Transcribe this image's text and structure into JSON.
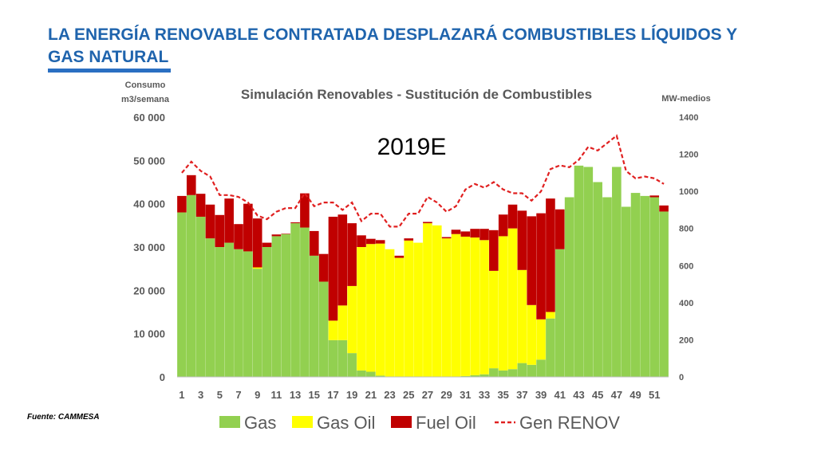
{
  "slide": {
    "title": "LA ENERGÍA RENOVABLE CONTRATADA DESPLAZARÁ COMBUSTIBLES LÍQUIDOS Y GAS NATURAL",
    "source": "Fuente: CAMMESA",
    "accent_color": "#1f64ad"
  },
  "chart_data": {
    "type": "bar",
    "stacked": true,
    "title": "Simulación Renovables - Sustitución de Combustibles",
    "annotation": "2019E",
    "ylabel_left_line1": "Consumo",
    "ylabel_left_line2": "m3/semana",
    "ylabel_right": "MW-medios",
    "ylim_left": [
      0,
      60000
    ],
    "ylim_right": [
      0,
      1400
    ],
    "yticks_left": [
      "0",
      "10 000",
      "20 000",
      "30 000",
      "40 000",
      "50 000",
      "60 000"
    ],
    "yticks_right": [
      "0",
      "200",
      "400",
      "600",
      "800",
      "1000",
      "1200",
      "1400"
    ],
    "categories": [
      1,
      2,
      3,
      4,
      5,
      6,
      7,
      8,
      9,
      10,
      11,
      12,
      13,
      14,
      15,
      16,
      17,
      18,
      19,
      20,
      21,
      22,
      23,
      24,
      25,
      26,
      27,
      28,
      29,
      30,
      31,
      32,
      33,
      34,
      35,
      36,
      37,
      38,
      39,
      40,
      41,
      42,
      43,
      44,
      45,
      46,
      47,
      48,
      49,
      50,
      51,
      52
    ],
    "xtick_labels": [
      "1",
      "3",
      "5",
      "7",
      "9",
      "11",
      "13",
      "15",
      "17",
      "19",
      "21",
      "23",
      "25",
      "27",
      "29",
      "31",
      "33",
      "35",
      "37",
      "39",
      "41",
      "43",
      "45",
      "47",
      "49",
      "51"
    ],
    "series": [
      {
        "name": "Gas",
        "kind": "bar",
        "color": "#92d050",
        "values": [
          38000,
          42000,
          37000,
          32000,
          30000,
          31000,
          29500,
          29000,
          25000,
          30000,
          32500,
          33000,
          35500,
          34500,
          28000,
          22000,
          8500,
          8500,
          5500,
          1500,
          1200,
          300,
          0,
          0,
          0,
          0,
          0,
          0,
          0,
          0,
          200,
          400,
          600,
          2000,
          1500,
          1800,
          3200,
          2800,
          4000,
          13500,
          29500,
          41500,
          48800,
          48500,
          45000,
          41500,
          48500,
          39300,
          42500,
          41800,
          41500,
          38200
        ]
      },
      {
        "name": "Gas Oil",
        "kind": "bar",
        "color": "#ffff00",
        "values": [
          0,
          0,
          0,
          0,
          0,
          0,
          0,
          0,
          300,
          0,
          0,
          0,
          0,
          0,
          0,
          0,
          4500,
          8000,
          15500,
          28500,
          29500,
          30500,
          29500,
          27500,
          31500,
          31000,
          35500,
          35000,
          32000,
          33000,
          32200,
          31800,
          31000,
          22500,
          31000,
          32500,
          21500,
          13800,
          9300,
          1500,
          0,
          0,
          0,
          0,
          0,
          0,
          0,
          0,
          0,
          0,
          0,
          0
        ]
      },
      {
        "name": "Fuel Oil",
        "kind": "bar",
        "color": "#c00000",
        "values": [
          3800,
          4600,
          5300,
          7800,
          7400,
          10200,
          5800,
          11000,
          11300,
          1000,
          400,
          100,
          200,
          7900,
          5700,
          6400,
          24000,
          21000,
          14500,
          2700,
          1200,
          800,
          0,
          500,
          500,
          0,
          300,
          0,
          300,
          1000,
          1200,
          2000,
          2600,
          9400,
          5000,
          5500,
          13700,
          20500,
          24500,
          26200,
          9200,
          0,
          0,
          0,
          0,
          0,
          0,
          0,
          0,
          0,
          400,
          1400
        ]
      },
      {
        "name": "Gen RENOV",
        "kind": "line",
        "axis": "right",
        "color": "#e02020",
        "values": [
          1100,
          1160,
          1110,
          1080,
          980,
          980,
          970,
          940,
          870,
          850,
          890,
          910,
          910,
          990,
          920,
          940,
          940,
          900,
          940,
          840,
          880,
          880,
          810,
          810,
          880,
          880,
          970,
          940,
          890,
          920,
          1010,
          1040,
          1020,
          1050,
          1010,
          990,
          990,
          950,
          1000,
          1120,
          1140,
          1130,
          1170,
          1240,
          1220,
          1260,
          1300,
          1110,
          1070,
          1080,
          1070,
          1040
        ]
      }
    ],
    "legend": {
      "position": "bottom",
      "entries": [
        "Gas",
        "Gas Oil",
        "Fuel Oil",
        "Gen RENOV"
      ]
    }
  }
}
